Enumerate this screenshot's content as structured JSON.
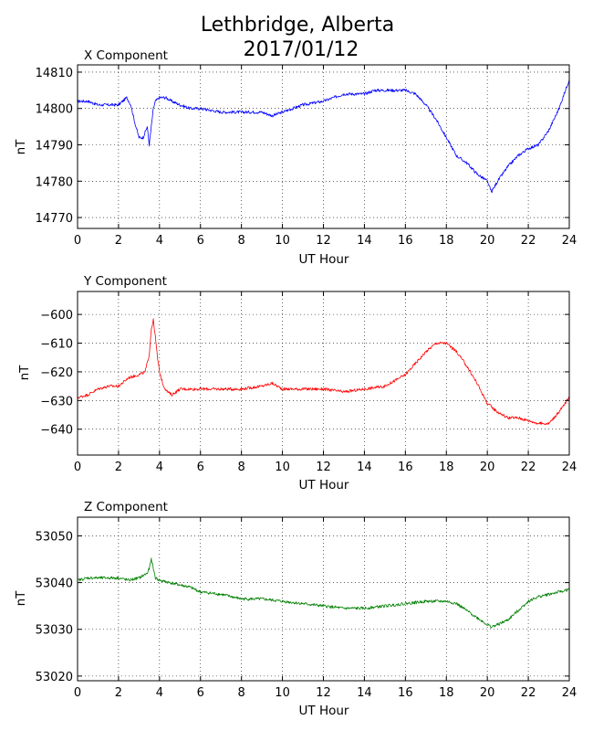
{
  "figure": {
    "title_line1": "Lethbridge, Alberta",
    "title_line2": "2017/01/12"
  },
  "chart_data": [
    {
      "type": "line",
      "title": "X Component",
      "xlabel": "UT Hour",
      "ylabel": "nT",
      "color": "#0000ff",
      "grid": true,
      "xlim": [
        0,
        24
      ],
      "ylim": [
        14767,
        14812
      ],
      "xticks": [
        0,
        2,
        4,
        6,
        8,
        10,
        12,
        14,
        16,
        18,
        20,
        22,
        24
      ],
      "yticks": [
        14770,
        14780,
        14790,
        14800,
        14810
      ],
      "x": [
        0,
        0.5,
        1,
        1.5,
        2,
        2.4,
        2.6,
        2.8,
        3.0,
        3.2,
        3.4,
        3.5,
        3.6,
        3.7,
        3.8,
        4.0,
        4.3,
        4.6,
        5.0,
        5.5,
        6,
        7,
        8,
        9,
        9.5,
        10,
        10.5,
        11,
        12,
        13,
        13.5,
        14,
        14.5,
        15,
        15.5,
        16,
        16.5,
        17,
        17.5,
        18,
        18.5,
        19,
        19.5,
        20,
        20.2,
        20.5,
        21,
        21.5,
        22,
        22.5,
        23,
        23.5,
        24
      ],
      "series": [
        {
          "values": [
            14802,
            14802,
            14801,
            14801,
            14801,
            14803,
            14801,
            14796,
            14792,
            14792,
            14795,
            14790,
            14795,
            14800,
            14802,
            14803,
            14803,
            14802,
            14801,
            14800,
            14800,
            14799,
            14799,
            14799,
            14798,
            14799,
            14800,
            14801,
            14802,
            14804,
            14804,
            14804,
            14805,
            14805,
            14805,
            14805,
            14804,
            14801,
            14797,
            14792,
            14787,
            14785,
            14782,
            14780,
            14777,
            14780,
            14784,
            14787,
            14789,
            14790,
            14794,
            14800,
            14808
          ]
        }
      ]
    },
    {
      "type": "line",
      "title": "Y Component",
      "xlabel": "UT Hour",
      "ylabel": "nT",
      "color": "#ff0000",
      "grid": true,
      "xlim": [
        0,
        24
      ],
      "ylim": [
        -649,
        -592
      ],
      "xticks": [
        0,
        2,
        4,
        6,
        8,
        10,
        12,
        14,
        16,
        18,
        20,
        22,
        24
      ],
      "yticks": [
        -600,
        -610,
        -620,
        -630,
        -640
      ],
      "x": [
        0,
        0.5,
        1,
        1.5,
        2,
        2.5,
        3,
        3.3,
        3.5,
        3.6,
        3.7,
        3.8,
        3.9,
        4.0,
        4.2,
        4.4,
        4.6,
        5,
        5.5,
        6,
        7,
        8,
        9,
        9.5,
        10,
        11,
        12,
        13,
        14,
        15,
        15.5,
        16,
        16.5,
        17,
        17.5,
        18,
        18.5,
        19,
        19.5,
        20,
        20.5,
        21,
        21.5,
        22,
        22.5,
        23,
        23.5,
        24
      ],
      "series": [
        {
          "values": [
            -629,
            -628,
            -626,
            -625,
            -625,
            -622,
            -621,
            -620,
            -614,
            -605,
            -602,
            -608,
            -615,
            -620,
            -625,
            -627,
            -628,
            -626,
            -626,
            -626,
            -626,
            -626,
            -625,
            -624,
            -626,
            -626,
            -626,
            -627,
            -626,
            -625,
            -623,
            -621,
            -617,
            -613,
            -610,
            -610,
            -613,
            -618,
            -624,
            -631,
            -634,
            -636,
            -636,
            -637,
            -638,
            -638,
            -634,
            -629
          ]
        }
      ]
    },
    {
      "type": "line",
      "title": "Z Component",
      "xlabel": "UT Hour",
      "ylabel": "nT",
      "color": "#008000",
      "grid": true,
      "xlim": [
        0,
        24
      ],
      "ylim": [
        53019,
        53054
      ],
      "xticks": [
        0,
        2,
        4,
        6,
        8,
        10,
        12,
        14,
        16,
        18,
        20,
        22,
        24
      ],
      "yticks": [
        53020,
        53030,
        53040,
        53050
      ],
      "x": [
        0,
        0.5,
        1,
        1.5,
        2,
        2.5,
        3,
        3.4,
        3.5,
        3.6,
        3.7,
        3.8,
        4,
        4.5,
        5,
        5.5,
        6,
        7,
        8,
        9,
        10,
        11,
        12,
        13,
        13.5,
        14,
        15,
        16,
        17,
        18,
        18.5,
        19,
        19.5,
        20,
        20.2,
        20.5,
        21,
        21.5,
        22,
        22.5,
        23,
        23.5,
        24
      ],
      "series": [
        {
          "values": [
            53040.5,
            53041,
            53041,
            53041,
            53041,
            53040.5,
            53041,
            53042,
            53043,
            53045,
            53043,
            53041,
            53040.5,
            53040,
            53039.5,
            53039,
            53038,
            53037.5,
            53036.5,
            53036.5,
            53036,
            53035.5,
            53035,
            53034.5,
            53034.5,
            53034.5,
            53035,
            53035.5,
            53036,
            53036,
            53035.5,
            53034,
            53032.5,
            53031,
            53030.5,
            53031,
            53032,
            53034,
            53036,
            53037,
            53037.5,
            53038,
            53038.5
          ]
        }
      ]
    }
  ]
}
